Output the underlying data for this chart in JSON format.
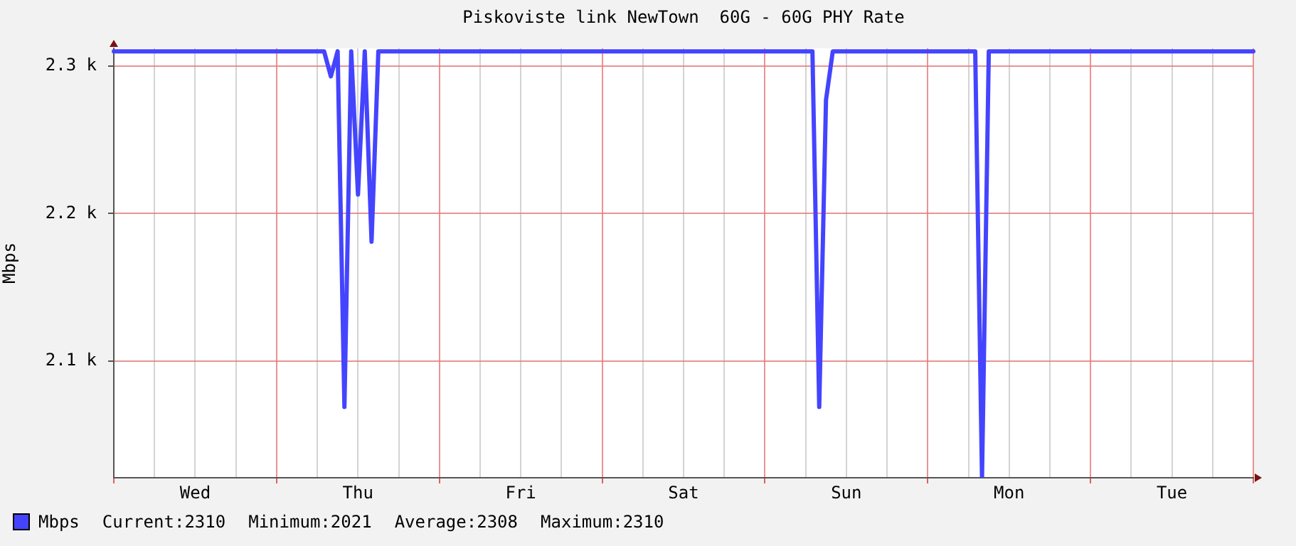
{
  "chart_data": {
    "type": "line",
    "title": "Piskoviste link NewTown  60G - 60G PHY Rate",
    "ylabel": "Mbps",
    "categories": [
      null,
      null,
      null,
      null,
      null,
      null,
      null,
      null,
      null,
      null,
      null,
      null,
      "Wed",
      null,
      null,
      null,
      null,
      null,
      null,
      null,
      null,
      null,
      null,
      null,
      null,
      null,
      null,
      null,
      null,
      null,
      null,
      null,
      null,
      null,
      null,
      null,
      "Thu",
      null,
      null,
      null,
      null,
      null,
      null,
      null,
      null,
      null,
      null,
      null,
      null,
      null,
      null,
      null,
      null,
      null,
      null,
      null,
      null,
      null,
      null,
      null,
      "Fri",
      null,
      null,
      null,
      null,
      null,
      null,
      null,
      null,
      null,
      null,
      null,
      null,
      null,
      null,
      null,
      null,
      null,
      null,
      null,
      null,
      null,
      null,
      null,
      "Sat",
      null,
      null,
      null,
      null,
      null,
      null,
      null,
      null,
      null,
      null,
      null,
      null,
      null,
      null,
      null,
      null,
      null,
      null,
      null,
      null,
      null,
      null,
      null,
      "Sun",
      null,
      null,
      null,
      null,
      null,
      null,
      null,
      null,
      null,
      null,
      null,
      null,
      null,
      null,
      null,
      null,
      null,
      null,
      null,
      null,
      null,
      null,
      null,
      "Mon",
      null,
      null,
      null,
      null,
      null,
      null,
      null,
      null,
      null,
      null,
      null,
      null,
      null,
      null,
      null,
      null,
      null,
      null,
      null,
      null,
      null,
      null,
      null,
      "Tue",
      null,
      null,
      null,
      null,
      null,
      null,
      null,
      null,
      null,
      null,
      null,
      null
    ],
    "series": [
      {
        "name": "Mbps",
        "color": "#4444ff",
        "values": [
          2310,
          2310,
          2310,
          2310,
          2310,
          2310,
          2310,
          2310,
          2310,
          2310,
          2310,
          2310,
          2310,
          2310,
          2310,
          2310,
          2310,
          2310,
          2310,
          2310,
          2310,
          2310,
          2310,
          2310,
          2310,
          2310,
          2310,
          2310,
          2310,
          2310,
          2310,
          2310,
          2293,
          2310,
          2069,
          2310,
          2213,
          2310,
          2181,
          2310,
          2310,
          2310,
          2310,
          2310,
          2310,
          2310,
          2310,
          2310,
          2310,
          2310,
          2310,
          2310,
          2310,
          2310,
          2310,
          2310,
          2310,
          2310,
          2310,
          2310,
          2310,
          2310,
          2310,
          2310,
          2310,
          2310,
          2310,
          2310,
          2310,
          2310,
          2310,
          2310,
          2310,
          2310,
          2310,
          2310,
          2310,
          2310,
          2310,
          2310,
          2310,
          2310,
          2310,
          2310,
          2310,
          2310,
          2310,
          2310,
          2310,
          2310,
          2310,
          2310,
          2310,
          2310,
          2310,
          2310,
          2310,
          2310,
          2310,
          2310,
          2310,
          2310,
          2310,
          2310,
          2069,
          2277,
          2310,
          2310,
          2310,
          2310,
          2310,
          2310,
          2310,
          2310,
          2310,
          2310,
          2310,
          2310,
          2310,
          2310,
          2310,
          2310,
          2310,
          2310,
          2310,
          2310,
          2310,
          2310,
          2021,
          2310,
          2310,
          2310,
          2310,
          2310,
          2310,
          2310,
          2310,
          2310,
          2310,
          2310,
          2310,
          2310,
          2310,
          2310,
          2310,
          2310,
          2310,
          2310,
          2310,
          2310,
          2310,
          2310,
          2310,
          2310,
          2310,
          2310,
          2310,
          2310,
          2310,
          2310,
          2310,
          2310,
          2310,
          2310,
          2310,
          2310,
          2310,
          2310,
          2310
        ]
      }
    ],
    "ylim": [
      2021,
      2312
    ],
    "yticks": [
      {
        "value": 2100,
        "label": "2.1 k"
      },
      {
        "value": 2200,
        "label": "2.2 k"
      },
      {
        "value": 2300,
        "label": "2.3 k"
      }
    ],
    "grid": true,
    "legend": "bottom left",
    "marker": "none",
    "line_style": "solid",
    "annotations": [
      "Current:2310",
      "Minimum:2021",
      "Average:2308",
      "Maximum:2310"
    ]
  }
}
